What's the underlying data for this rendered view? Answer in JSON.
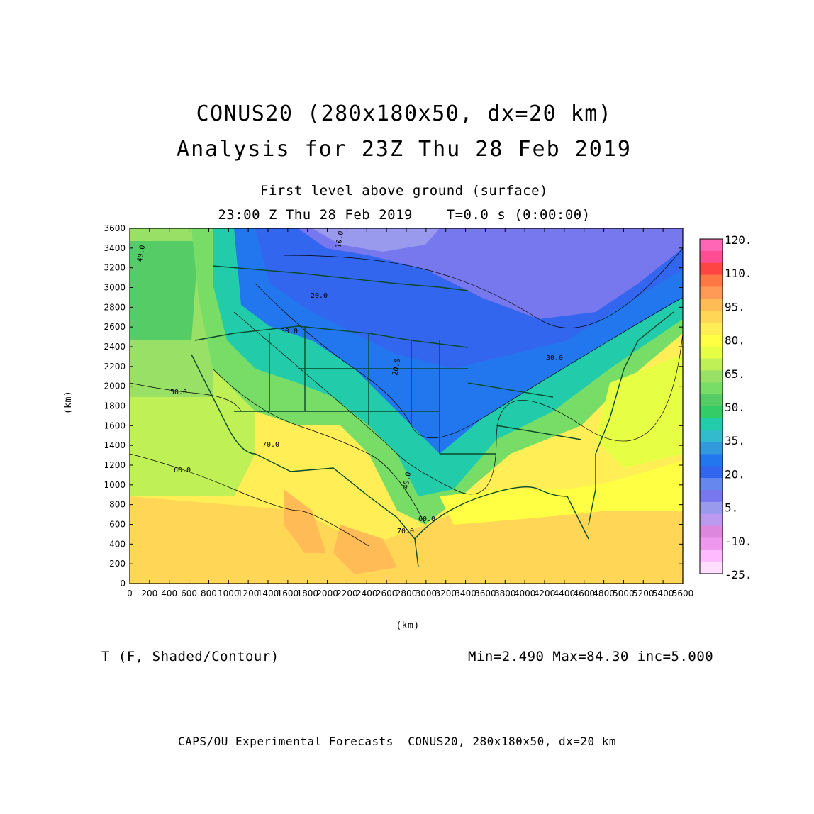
{
  "header": {
    "title_line1": "CONUS20 (280x180x50, dx=20 km)",
    "title_line2": "Analysis for 23Z Thu 28 Feb 2019",
    "subtitle_line1": "First level above ground (surface)",
    "subtitle_line2": "23:00 Z Thu 28 Feb 2019    T=0.0 s (0:00:00)"
  },
  "axes": {
    "x_label": "(km)",
    "y_label": "(km)",
    "x_ticks": [
      "0",
      "200",
      "400",
      "600",
      "800",
      "1000",
      "1200",
      "1400",
      "1600",
      "1800",
      "2000",
      "2200",
      "2400",
      "2600",
      "2800",
      "3000",
      "3200",
      "3400",
      "3600",
      "3800",
      "4000",
      "4200",
      "4400",
      "4600",
      "4800",
      "5000",
      "5200",
      "5400",
      "5600"
    ],
    "y_ticks": [
      "0",
      "200",
      "400",
      "600",
      "800",
      "1000",
      "1200",
      "1400",
      "1600",
      "1800",
      "2000",
      "2200",
      "2400",
      "2600",
      "2800",
      "3000",
      "3200",
      "3400",
      "3600"
    ],
    "x_range": [
      0,
      5600
    ],
    "y_range": [
      0,
      3600
    ]
  },
  "colorbar": {
    "labels": [
      "120.",
      "110.",
      "95.",
      "80.",
      "65.",
      "50.",
      "35.",
      "20.",
      "5.",
      "-10.",
      "-25."
    ],
    "colors": [
      "#ff66b3",
      "#ff4d94",
      "#ff4444",
      "#ff7744",
      "#ff9955",
      "#ffbb55",
      "#ffd655",
      "#ffee55",
      "#ffff44",
      "#e6ff44",
      "#bff055",
      "#99e066",
      "#77dd66",
      "#55cc66",
      "#33cc66",
      "#22ccaa",
      "#33bbcc",
      "#3399dd",
      "#2277ee",
      "#3366ee",
      "#6688ee",
      "#7777ee",
      "#9999ee",
      "#bb99ee",
      "#dd88dd",
      "#ee99ee",
      "#ffbbff",
      "#ffddff"
    ]
  },
  "contour_labels": [
    "10.0",
    "20.0",
    "30.0",
    "40.0",
    "50.0",
    "60.0",
    "70.0"
  ],
  "field_label": "T (F, Shaded/Contour)",
  "stats": "Min=2.490 Max=84.30 inc=5.000",
  "footer": "CAPS/OU Experimental Forecasts  CONUS20, 280x180x50, dx=20 km"
}
